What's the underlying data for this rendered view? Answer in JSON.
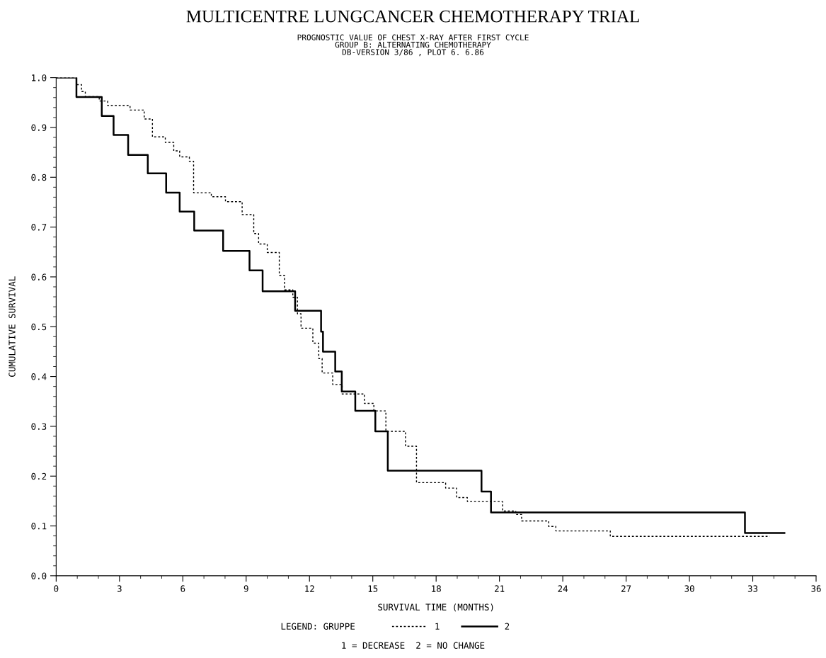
{
  "chart_data": {
    "type": "step",
    "title": "MULTICENTRE LUNGCANCER CHEMOTHERAPY TRIAL",
    "subtitle": "PROGNOSTIC VALUE OF CHEST X-RAY AFTER FIRST CYCLE\nGROUP B: ALTERNATING CHEMOTHERAPY\nDB-VERSION 3/86 , PLOT 6. 6.86",
    "xlabel": "SURVIVAL TIME (MONTHS)",
    "ylabel": "CUMULATIVE SURVIVAL",
    "legend_title": "LEGEND: GRUPPE",
    "annotations": [
      "1 = DECREASE  2 = NO CHANGE"
    ],
    "series": [
      {
        "name": "1",
        "color": "#000000",
        "line_style": "dotted",
        "x": [
          0,
          0.97,
          1.2,
          1.38,
          2.04,
          2.44,
          3.5,
          4.17,
          4.56,
          5.17,
          5.57,
          5.85,
          6.31,
          6.51,
          7.35,
          8.02,
          8.81,
          9.36,
          9.59,
          10.0,
          10.57,
          10.82,
          11.21,
          11.43,
          11.6,
          12.16,
          12.44,
          12.6,
          13.1,
          13.55,
          14.6,
          15.05,
          15.62,
          16.55,
          17.07,
          18.45,
          18.97,
          19.48,
          21.15,
          21.77,
          22.05,
          23.33,
          23.67,
          26.25,
          33.8
        ],
        "values": [
          1.0,
          0.986,
          0.972,
          0.962,
          0.953,
          0.944,
          0.935,
          0.917,
          0.881,
          0.87,
          0.853,
          0.841,
          0.832,
          0.769,
          0.761,
          0.751,
          0.725,
          0.687,
          0.666,
          0.649,
          0.603,
          0.574,
          0.559,
          0.526,
          0.497,
          0.467,
          0.436,
          0.407,
          0.384,
          0.365,
          0.346,
          0.331,
          0.29,
          0.26,
          0.187,
          0.176,
          0.157,
          0.149,
          0.13,
          0.123,
          0.11,
          0.099,
          0.09,
          0.079,
          0.079
        ]
      },
      {
        "name": "2",
        "color": "#000000",
        "line_style": "solid",
        "x": [
          0,
          0.96,
          2.16,
          2.72,
          3.41,
          4.34,
          5.21,
          5.85,
          6.54,
          7.91,
          9.16,
          9.78,
          11.32,
          12.55,
          12.64,
          13.22,
          13.53,
          14.17,
          15.12,
          15.71,
          20.15,
          20.6,
          32.63,
          34.5
        ],
        "values": [
          1.0,
          0.961,
          0.923,
          0.885,
          0.845,
          0.808,
          0.769,
          0.731,
          0.693,
          0.652,
          0.613,
          0.571,
          0.532,
          0.49,
          0.45,
          0.41,
          0.37,
          0.331,
          0.29,
          0.211,
          0.169,
          0.127,
          0.086,
          0.086
        ]
      }
    ],
    "xlim": [
      0,
      36
    ],
    "xticks": [
      0,
      3,
      6,
      9,
      12,
      15,
      18,
      21,
      24,
      27,
      30,
      33,
      36
    ],
    "ylim": [
      0,
      1.0
    ],
    "yticks": [
      {
        "value": 0,
        "label": "0.0"
      },
      0.1,
      0.2,
      0.3,
      0.4,
      0.5,
      0.6,
      0.7,
      0.8,
      0.9,
      {
        "value": 1.0,
        "label": "1.0"
      }
    ],
    "grid": false,
    "legend": "bottom"
  }
}
